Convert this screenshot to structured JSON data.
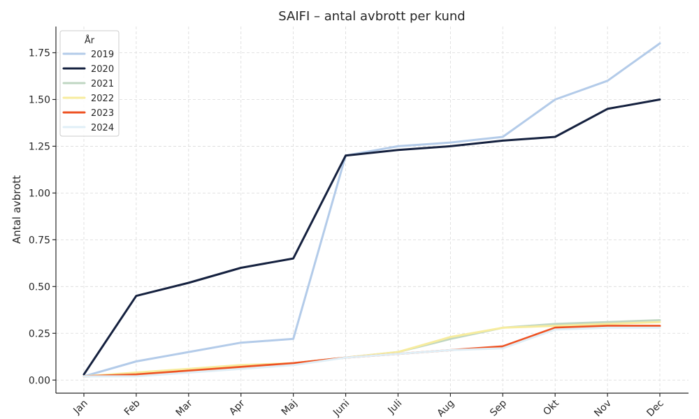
{
  "chart_data": {
    "type": "line",
    "title": "SAIFI – antal avbrott per kund",
    "xlabel": "",
    "ylabel": "Antal avbrott",
    "categories": [
      "Jan",
      "Feb",
      "Mar",
      "Apr",
      "Maj",
      "Juni",
      "Juli",
      "Aug",
      "Sep",
      "Okt",
      "Nov",
      "Dec"
    ],
    "ylim": [
      -0.07,
      1.89
    ],
    "yticks": [
      0.0,
      0.25,
      0.5,
      0.75,
      1.0,
      1.25,
      1.5,
      1.75
    ],
    "ytick_labels": [
      "0.00",
      "0.25",
      "0.50",
      "0.75",
      "1.00",
      "1.25",
      "1.50",
      "1.75"
    ],
    "grid": true,
    "legend": {
      "title": "År",
      "placement": "top-left"
    },
    "series": [
      {
        "name": "2019",
        "color": "#b3cbe9",
        "width": 3,
        "values": [
          0.02,
          0.1,
          0.15,
          0.2,
          0.22,
          1.2,
          1.25,
          1.27,
          1.3,
          1.5,
          1.6,
          1.8
        ]
      },
      {
        "name": "2020",
        "color": "#15213f",
        "width": 3,
        "values": [
          0.03,
          0.45,
          0.52,
          0.6,
          0.65,
          1.2,
          1.23,
          1.25,
          1.28,
          1.3,
          1.45,
          1.5
        ]
      },
      {
        "name": "2021",
        "color": "#bfd6c2",
        "width": 3,
        "values": [
          0.02,
          0.03,
          0.05,
          0.07,
          0.09,
          0.12,
          0.15,
          0.22,
          0.28,
          0.3,
          0.31,
          0.32
        ]
      },
      {
        "name": "2022",
        "color": "#f7ec9e",
        "width": 3,
        "values": [
          0.02,
          0.04,
          0.06,
          0.08,
          0.09,
          0.12,
          0.15,
          0.23,
          0.28,
          0.29,
          0.3,
          0.31
        ]
      },
      {
        "name": "2023",
        "color": "#ee5222",
        "width": 3,
        "values": [
          0.02,
          0.03,
          0.05,
          0.07,
          0.09,
          0.12,
          0.14,
          0.16,
          0.18,
          0.28,
          0.29,
          0.29
        ]
      },
      {
        "name": "2024",
        "color": "#e0eff7",
        "width": 3,
        "values": [
          0.02,
          0.02,
          0.04,
          0.06,
          0.08,
          0.12,
          0.14,
          0.16,
          0.17,
          0.27,
          0.28,
          0.28
        ]
      }
    ]
  }
}
